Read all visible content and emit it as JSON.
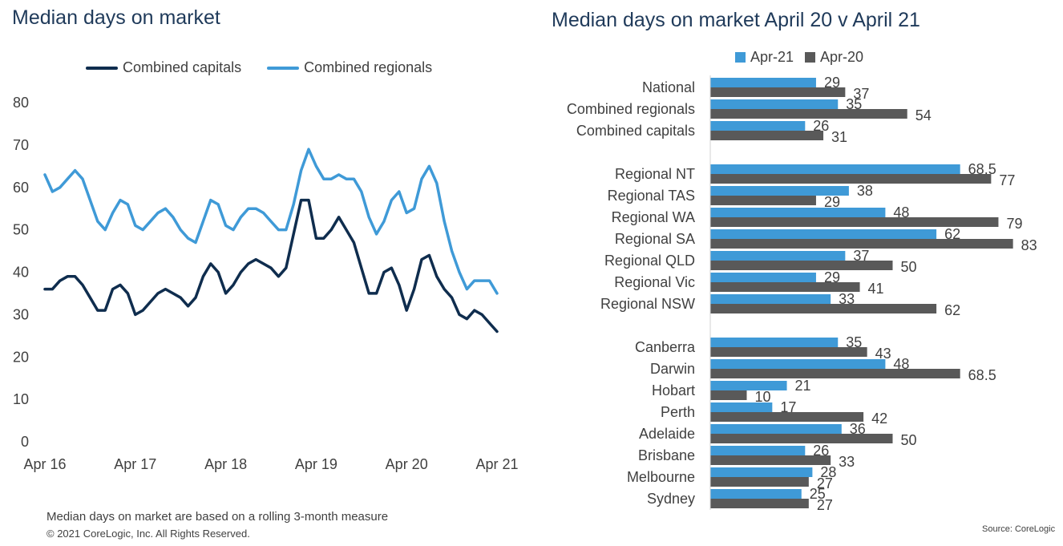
{
  "left_chart": {
    "title": "Median days on market",
    "footnote": "Median days on market are based on a rolling 3-month measure",
    "copyright": "© 2021 CoreLogic,  Inc. All Rights Reserved.",
    "colors": {
      "capitals": "#0f2d4e",
      "regionals": "#3f9ad7",
      "axis_text": "#404040"
    }
  },
  "right_chart": {
    "title": "Median days on market April 20 v April 21",
    "source": "Source: CoreLogic",
    "colors": {
      "apr21": "#3f9ad7",
      "apr20": "#595959"
    }
  },
  "chart_data": [
    {
      "type": "line",
      "title": "Median days on market",
      "x_tick_labels": [
        "Apr 16",
        "Apr 17",
        "Apr 18",
        "Apr 19",
        "Apr 20",
        "Apr 21"
      ],
      "x_start": "2016-04",
      "x_end": "2021-04",
      "ylim": [
        0,
        80
      ],
      "y_ticks": [
        "0",
        "10",
        "20",
        "30",
        "40",
        "50",
        "60",
        "70",
        "80"
      ],
      "grid": false,
      "legend_position": "top",
      "series": [
        {
          "name": "Combined capitals",
          "values": [
            36,
            36,
            38,
            39,
            39,
            37,
            34,
            31,
            31,
            36,
            37,
            35,
            30,
            31,
            33,
            35,
            36,
            35,
            34,
            32,
            34,
            39,
            42,
            40,
            35,
            37,
            40,
            42,
            43,
            42,
            41,
            39,
            41,
            49,
            57,
            57,
            48,
            48,
            50,
            53,
            50,
            47,
            41,
            35,
            35,
            40,
            41,
            37,
            31,
            36,
            43,
            44,
            39,
            36,
            34,
            30,
            29,
            31,
            30,
            28,
            26
          ]
        },
        {
          "name": "Combined regionals",
          "values": [
            63,
            59,
            60,
            62,
            64,
            62,
            57,
            52,
            50,
            54,
            57,
            56,
            51,
            50,
            52,
            54,
            55,
            53,
            50,
            48,
            47,
            52,
            57,
            56,
            51,
            50,
            53,
            55,
            55,
            54,
            52,
            50,
            50,
            56,
            64,
            69,
            65,
            62,
            62,
            63,
            62,
            62,
            59,
            53,
            49,
            52,
            57,
            59,
            54,
            55,
            62,
            65,
            61,
            52,
            45,
            40,
            36,
            38,
            38,
            38,
            35
          ]
        }
      ]
    },
    {
      "type": "bar",
      "orientation": "horizontal",
      "title": "Median days on market April 20 v April 21",
      "legend_position": "top",
      "series_names": [
        "Apr-21",
        "Apr-20"
      ],
      "groups": [
        {
          "categories": [
            {
              "label": "National",
              "apr21": 29,
              "apr20": 37,
              "apr21_label": "29",
              "apr20_label": "37"
            },
            {
              "label": "Combined regionals",
              "apr21": 35,
              "apr20": 54,
              "apr21_label": "35",
              "apr20_label": "54"
            },
            {
              "label": "Combined capitals",
              "apr21": 26,
              "apr20": 31,
              "apr21_label": "26",
              "apr20_label": "31"
            }
          ]
        },
        {
          "categories": [
            {
              "label": "Regional NT",
              "apr21": 68.5,
              "apr20": 77,
              "apr21_label": "68.5",
              "apr20_label": "77"
            },
            {
              "label": "Regional TAS",
              "apr21": 38,
              "apr20": 29,
              "apr21_label": "38",
              "apr20_label": "29"
            },
            {
              "label": "Regional WA",
              "apr21": 48,
              "apr20": 79,
              "apr21_label": "48",
              "apr20_label": "79"
            },
            {
              "label": "Regional SA",
              "apr21": 62,
              "apr20": 83,
              "apr21_label": "62",
              "apr20_label": "83"
            },
            {
              "label": "Regional QLD",
              "apr21": 37,
              "apr20": 50,
              "apr21_label": "37",
              "apr20_label": "50"
            },
            {
              "label": "Regional Vic",
              "apr21": 29,
              "apr20": 41,
              "apr21_label": "29",
              "apr20_label": "41"
            },
            {
              "label": "Regional NSW",
              "apr21": 33,
              "apr20": 62,
              "apr21_label": "33",
              "apr20_label": "62"
            }
          ]
        },
        {
          "categories": [
            {
              "label": "Canberra",
              "apr21": 35,
              "apr20": 43,
              "apr21_label": "35",
              "apr20_label": "43"
            },
            {
              "label": "Darwin",
              "apr21": 48,
              "apr20": 68.5,
              "apr21_label": "48",
              "apr20_label": "68.5"
            },
            {
              "label": "Hobart",
              "apr21": 21,
              "apr20": 10,
              "apr21_label": "21",
              "apr20_label": "10"
            },
            {
              "label": "Perth",
              "apr21": 17,
              "apr20": 42,
              "apr21_label": "17",
              "apr20_label": "42"
            },
            {
              "label": "Adelaide",
              "apr21": 36,
              "apr20": 50,
              "apr21_label": "36",
              "apr20_label": "50"
            },
            {
              "label": "Brisbane",
              "apr21": 26,
              "apr20": 33,
              "apr21_label": "26",
              "apr20_label": "33"
            },
            {
              "label": "Melbourne",
              "apr21": 28,
              "apr20": 27,
              "apr21_label": "28",
              "apr20_label": "27"
            },
            {
              "label": "Sydney",
              "apr21": 25,
              "apr20": 27,
              "apr21_label": "25",
              "apr20_label": "27"
            }
          ]
        }
      ]
    }
  ]
}
